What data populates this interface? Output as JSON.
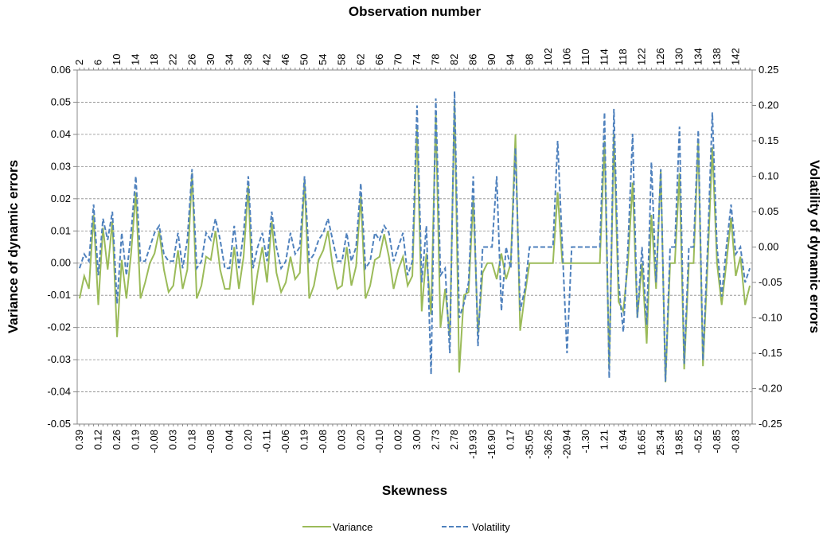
{
  "chart_data": {
    "type": "line",
    "title": "Observation number",
    "x_label": "Skewness",
    "y_label": "Variance of dynamic errors",
    "y2_label": "Volatility of dynamic errors",
    "grid": true,
    "legend": "bottom",
    "categories": [
      "0.39",
      null,
      null,
      null,
      "0.12",
      null,
      null,
      null,
      "0.26",
      null,
      null,
      null,
      "0.19",
      null,
      null,
      null,
      "-0.08",
      null,
      null,
      null,
      "0.03",
      null,
      null,
      null,
      "0.18",
      null,
      null,
      null,
      "-0.08",
      null,
      null,
      null,
      "0.04",
      null,
      null,
      null,
      "0.20",
      null,
      null,
      null,
      "-0.11",
      null,
      null,
      null,
      "-0.06",
      null,
      null,
      null,
      "0.19",
      null,
      null,
      null,
      "-0.08",
      null,
      null,
      null,
      "0.03",
      null,
      null,
      null,
      "0.20",
      null,
      null,
      null,
      "-0.10",
      null,
      null,
      null,
      "0.02",
      null,
      null,
      null,
      "3.00",
      null,
      null,
      null,
      "2.73",
      null,
      null,
      null,
      "2.78",
      null,
      null,
      null,
      "-19.93",
      null,
      null,
      null,
      "-16.90",
      null,
      null,
      null,
      "0.17",
      null,
      null,
      null,
      "-35.05",
      null,
      null,
      null,
      "-36.26",
      null,
      null,
      null,
      "-20.94",
      null,
      null,
      null,
      "-1.30",
      null,
      null,
      null,
      "1.21",
      null,
      null,
      null,
      "6.94",
      null,
      null,
      null,
      "16.65",
      null,
      null,
      null,
      "25.34",
      null,
      null,
      null,
      "19.85",
      null,
      null,
      null,
      "-0.52",
      null,
      null,
      null,
      "-0.85",
      null,
      null,
      null,
      "-0.83",
      null,
      null,
      null
    ],
    "x2categories": [
      2,
      null,
      null,
      null,
      6,
      null,
      null,
      null,
      10,
      null,
      null,
      null,
      14,
      null,
      null,
      null,
      18,
      null,
      null,
      null,
      22,
      null,
      null,
      null,
      26,
      null,
      null,
      null,
      30,
      null,
      null,
      null,
      34,
      null,
      null,
      null,
      38,
      null,
      null,
      null,
      42,
      null,
      null,
      null,
      46,
      null,
      null,
      null,
      50,
      null,
      null,
      null,
      54,
      null,
      null,
      null,
      58,
      null,
      null,
      null,
      62,
      null,
      null,
      null,
      66,
      null,
      null,
      null,
      70,
      null,
      null,
      null,
      74,
      null,
      null,
      null,
      78,
      null,
      null,
      null,
      82,
      null,
      null,
      null,
      86,
      null,
      null,
      null,
      90,
      null,
      null,
      null,
      94,
      null,
      null,
      null,
      98,
      null,
      null,
      null,
      102,
      null,
      null,
      null,
      106,
      null,
      null,
      null,
      110,
      null,
      null,
      null,
      114,
      null,
      null,
      null,
      118,
      null,
      null,
      null,
      122,
      null,
      null,
      null,
      126,
      null,
      null,
      null,
      130,
      null,
      null,
      null,
      134,
      null,
      null,
      null,
      138,
      null,
      null,
      null,
      142,
      null,
      null,
      null
    ],
    "ylim": [
      -0.05,
      0.06
    ],
    "yticks": [
      {
        "value": -0.05,
        "label": "-0.05"
      },
      {
        "value": -0.04,
        "label": "-0.04"
      },
      {
        "value": -0.03,
        "label": "-0.03"
      },
      {
        "value": -0.02,
        "label": "-0.02"
      },
      {
        "value": -0.01,
        "label": "-0.01"
      },
      {
        "value": 0,
        "label": "0.00"
      },
      {
        "value": 0.01,
        "label": "0.01"
      },
      {
        "value": 0.02,
        "label": "0.02"
      },
      {
        "value": 0.03,
        "label": "0.03"
      },
      {
        "value": 0.04,
        "label": "0.04"
      },
      {
        "value": 0.05,
        "label": "0.05"
      },
      {
        "value": 0.06,
        "label": "0.06"
      }
    ],
    "y2lim": [
      -0.25,
      0.25
    ],
    "y2ticks": [
      {
        "value": -0.25,
        "label": "-0.25"
      },
      {
        "value": -0.2,
        "label": "-0.20"
      },
      {
        "value": -0.15,
        "label": "-0.15"
      },
      {
        "value": -0.1,
        "label": "-0.10"
      },
      {
        "value": -0.05,
        "label": "-0.05"
      },
      {
        "value": 0,
        "label": "0.00"
      },
      {
        "value": 0.05,
        "label": "0.05"
      },
      {
        "value": 0.1,
        "label": "0.10"
      },
      {
        "value": 0.15,
        "label": "0.15"
      },
      {
        "value": 0.2,
        "label": "0.20"
      },
      {
        "value": 0.25,
        "label": "0.25"
      }
    ],
    "series": [
      {
        "name": "Variance",
        "color": "#9bbb59",
        "dash": false,
        "axis": "y",
        "values": [
          -0.011,
          -0.004,
          -0.008,
          0.015,
          -0.013,
          0.011,
          -0.002,
          0.013,
          -0.023,
          0.001,
          -0.011,
          0.003,
          0.022,
          -0.011,
          -0.006,
          0.0,
          0.003,
          0.01,
          -0.002,
          -0.009,
          -0.007,
          0.004,
          -0.008,
          -0.002,
          0.028,
          -0.011,
          -0.007,
          0.002,
          0.001,
          0.01,
          -0.002,
          -0.008,
          -0.008,
          0.005,
          -0.008,
          0.002,
          0.024,
          -0.013,
          -0.003,
          0.005,
          -0.006,
          0.013,
          -0.003,
          -0.009,
          -0.006,
          0.002,
          -0.005,
          -0.003,
          0.026,
          -0.011,
          -0.007,
          0.001,
          0.004,
          0.01,
          -0.001,
          -0.008,
          -0.007,
          0.005,
          -0.007,
          -0.001,
          0.021,
          -0.011,
          -0.007,
          0.001,
          0.002,
          0.009,
          0.002,
          -0.008,
          -0.002,
          0.002,
          -0.007,
          -0.004,
          0.042,
          -0.015,
          0.003,
          -0.016,
          0.046,
          -0.02,
          -0.008,
          -0.023,
          0.05,
          -0.034,
          -0.01,
          -0.009,
          0.02,
          -0.022,
          -0.003,
          0.0,
          0.0,
          -0.005,
          0.003,
          -0.005,
          0.0,
          0.04,
          -0.021,
          -0.01,
          0.0,
          0.0,
          0.0,
          0.0,
          0.0,
          0.0,
          0.022,
          0.0,
          0.0,
          0.0,
          0.0,
          0.0,
          0.0,
          0.0,
          0.0,
          0.0,
          0.038,
          -0.033,
          0.04,
          -0.012,
          -0.015,
          0.0,
          0.025,
          -0.017,
          0.0,
          -0.025,
          0.015,
          -0.008,
          0.029,
          -0.037,
          0.0,
          0.0,
          0.028,
          -0.033,
          0.0,
          0.0,
          0.038,
          -0.032,
          0.0,
          0.036,
          0.0,
          -0.013,
          0.0,
          0.014,
          -0.004,
          0.002,
          -0.013,
          -0.007
        ]
      },
      {
        "name": "Volatility",
        "color": "#4f81bd",
        "dash": true,
        "axis": "y2",
        "values": [
          -0.03,
          -0.01,
          -0.02,
          0.06,
          -0.04,
          0.04,
          0.01,
          0.05,
          -0.08,
          0.02,
          -0.04,
          0.02,
          0.1,
          -0.02,
          -0.02,
          0.0,
          0.02,
          0.03,
          -0.01,
          -0.02,
          -0.02,
          0.02,
          -0.03,
          0.01,
          0.11,
          -0.03,
          -0.02,
          0.02,
          0.01,
          0.04,
          0.01,
          -0.03,
          -0.03,
          0.03,
          -0.03,
          0.02,
          0.1,
          -0.03,
          0.0,
          0.02,
          -0.02,
          0.05,
          0.0,
          -0.03,
          -0.02,
          0.02,
          -0.01,
          0.0,
          0.1,
          -0.02,
          -0.01,
          0.01,
          0.02,
          0.04,
          0.01,
          -0.02,
          -0.02,
          0.02,
          -0.02,
          0.0,
          0.09,
          -0.03,
          -0.02,
          0.02,
          0.01,
          0.03,
          0.02,
          -0.02,
          0.0,
          0.02,
          -0.04,
          -0.02,
          0.2,
          -0.05,
          0.03,
          -0.18,
          0.21,
          -0.04,
          -0.03,
          -0.15,
          0.22,
          -0.1,
          -0.08,
          -0.05,
          0.1,
          -0.14,
          0.0,
          0.0,
          0.0,
          0.1,
          -0.09,
          0.0,
          -0.03,
          0.14,
          -0.09,
          -0.06,
          0.0,
          0.0,
          0.0,
          0.0,
          0.0,
          0.0,
          0.15,
          0.0,
          -0.15,
          0.0,
          0.0,
          0.0,
          0.0,
          0.0,
          0.0,
          0.0,
          0.19,
          -0.185,
          0.195,
          -0.05,
          -0.12,
          0.0,
          0.16,
          -0.1,
          0.0,
          -0.11,
          0.12,
          -0.05,
          0.11,
          -0.19,
          0.0,
          0.0,
          0.17,
          -0.165,
          0.0,
          0.0,
          0.165,
          -0.16,
          0.0,
          0.19,
          0.0,
          -0.07,
          0.0,
          0.06,
          -0.01,
          0.0,
          -0.05,
          -0.03
        ]
      }
    ]
  }
}
